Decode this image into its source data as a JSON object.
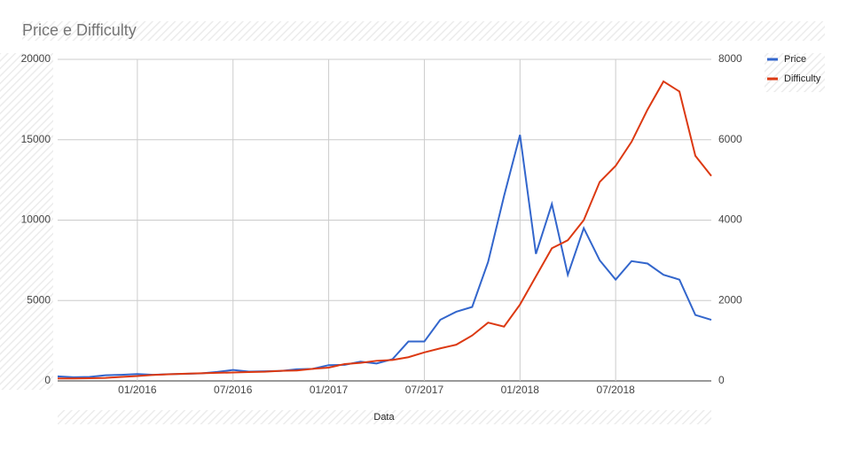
{
  "chart_data": {
    "type": "line",
    "title": "Price e Difficulty",
    "x_label": "Data",
    "x": [
      "08/2015",
      "09/2015",
      "10/2015",
      "11/2015",
      "12/2015",
      "01/2016",
      "02/2016",
      "03/2016",
      "04/2016",
      "05/2016",
      "06/2016",
      "07/2016",
      "08/2016",
      "09/2016",
      "10/2016",
      "11/2016",
      "12/2016",
      "01/2017",
      "02/2017",
      "03/2017",
      "04/2017",
      "05/2017",
      "06/2017",
      "07/2017",
      "08/2017",
      "09/2017",
      "10/2017",
      "11/2017",
      "12/2017",
      "01/2018",
      "02/2018",
      "03/2018",
      "04/2018",
      "05/2018",
      "06/2018",
      "07/2018",
      "08/2018",
      "09/2018",
      "10/2018",
      "11/2018",
      "12/2018",
      "01/2019"
    ],
    "xlim": [
      "08/2015",
      "01/2019"
    ],
    "xticks": [
      "01/2016",
      "07/2016",
      "01/2017",
      "07/2017",
      "01/2018",
      "07/2018"
    ],
    "ylim": [
      0,
      20000
    ],
    "yticks": [
      0,
      5000,
      10000,
      15000,
      20000
    ],
    "y2lim": [
      0,
      8000
    ],
    "y2ticks": [
      0,
      2000,
      4000,
      6000,
      8000
    ],
    "grid": true,
    "legend": "right",
    "series": [
      {
        "name": "Price",
        "color": "#3366cc",
        "values": [
          280,
          230,
          250,
          350,
          380,
          430,
          380,
          420,
          440,
          470,
          560,
          680,
          580,
          600,
          620,
          720,
          750,
          980,
          1000,
          1200,
          1080,
          1350,
          2450,
          2450,
          3800,
          4300,
          4600,
          7400,
          11500,
          15300,
          7900,
          11000,
          6600,
          9500,
          7500,
          6300,
          7450,
          7300,
          6600,
          6300,
          4100,
          3800
        ]
      },
      {
        "name": "Difficulty",
        "color": "#dc3912",
        "axis": "y2",
        "values": [
          60,
          60,
          65,
          75,
          100,
          120,
          150,
          165,
          180,
          190,
          200,
          210,
          220,
          230,
          250,
          260,
          300,
          330,
          420,
          450,
          500,
          520,
          590,
          710,
          810,
          900,
          1130,
          1450,
          1350,
          1900,
          2600,
          3300,
          3500,
          4000,
          4950,
          5350,
          5950,
          6750,
          7450,
          7200,
          5600,
          5100
        ]
      }
    ]
  }
}
